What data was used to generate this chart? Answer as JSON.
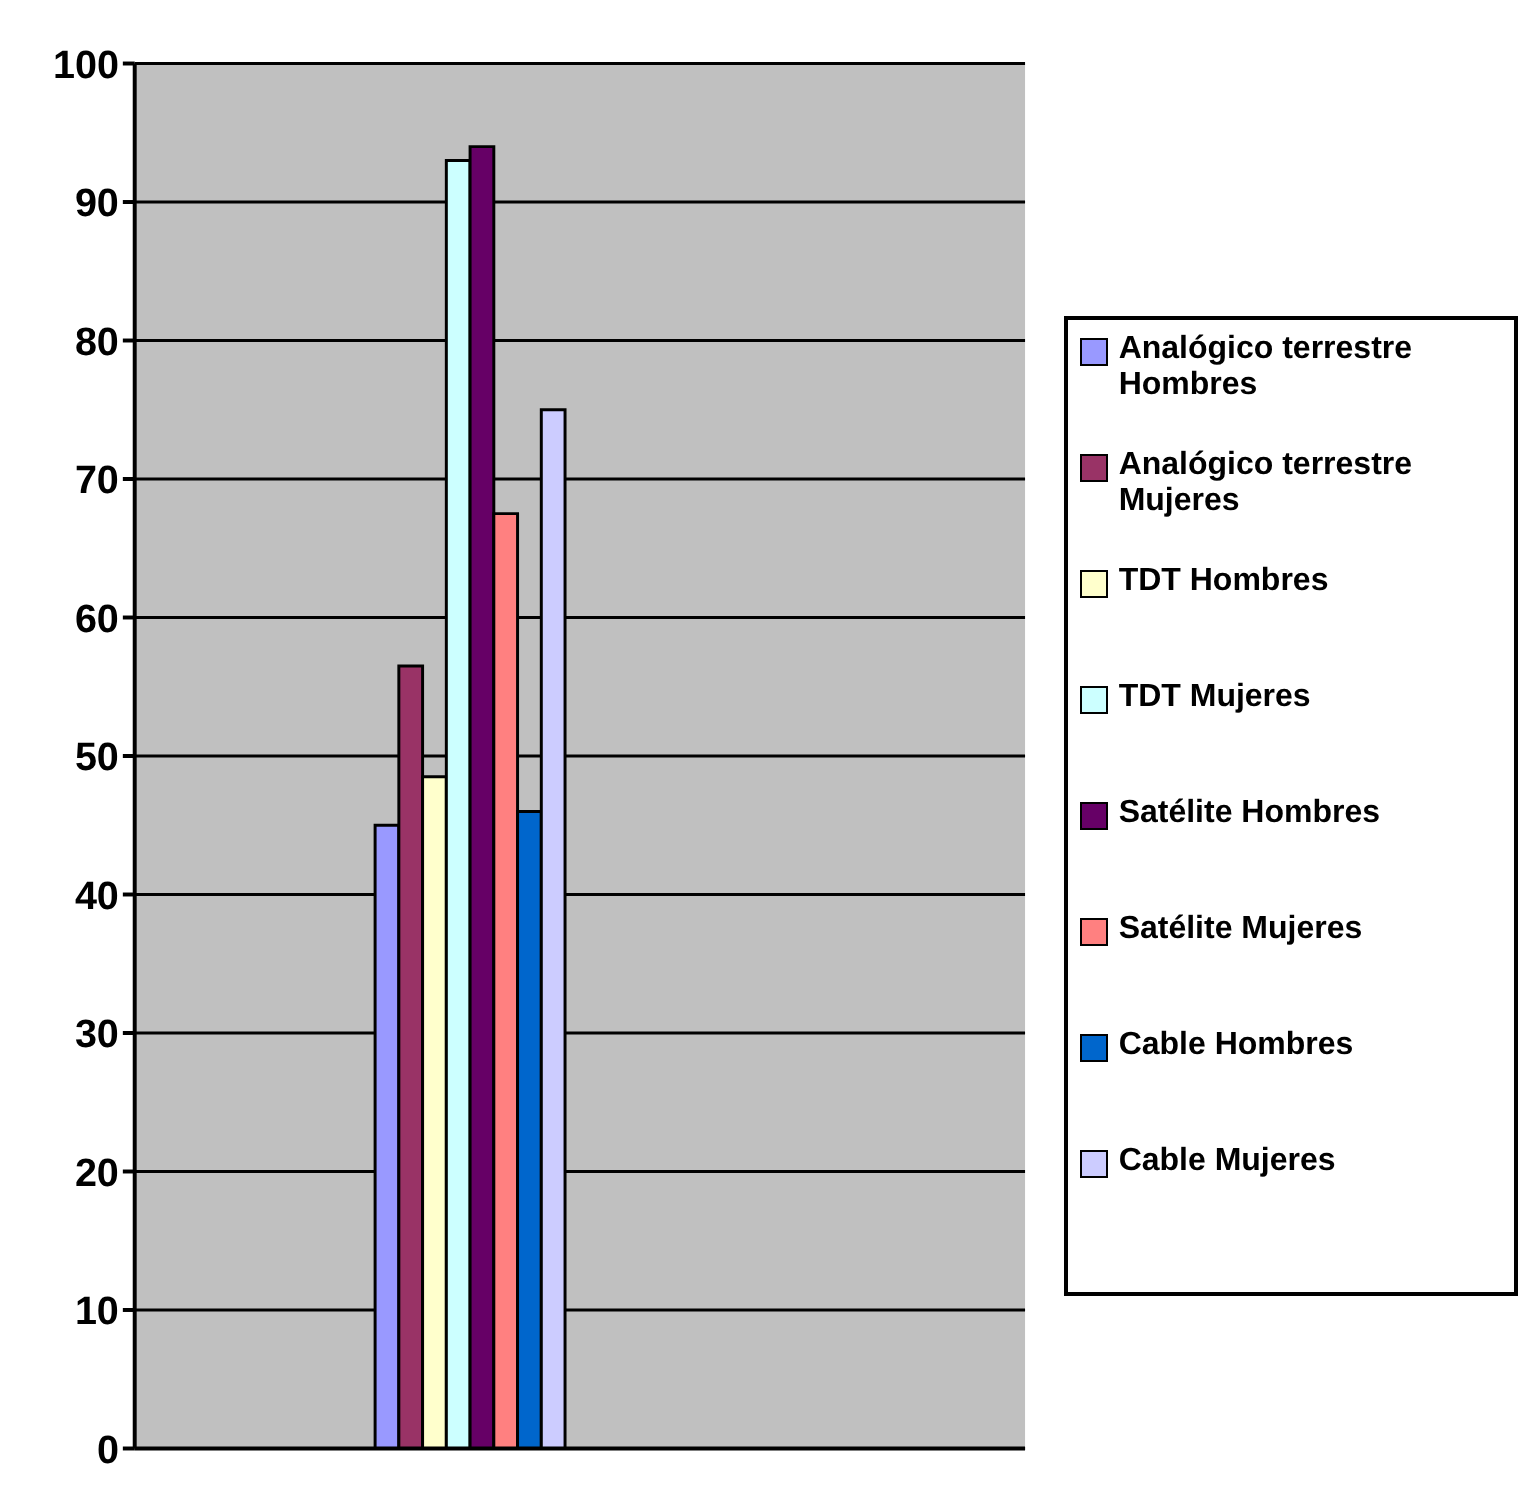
{
  "chart_data": {
    "type": "bar",
    "categories": [
      null,
      null,
      null,
      null
    ],
    "series": [
      {
        "name": "Analógico terrestre Hombres",
        "color": "#9999ff",
        "values": [
          null,
          45,
          null,
          null
        ]
      },
      {
        "name": "Analógico terrestre Mujeres",
        "color": "#993366",
        "values": [
          null,
          56.5,
          null,
          null
        ]
      },
      {
        "name": "TDT Hombres",
        "color": "#ffffcc",
        "values": [
          null,
          48.5,
          null,
          null
        ]
      },
      {
        "name": "TDT Mujeres",
        "color": "#ccffff",
        "values": [
          null,
          93,
          null,
          null
        ]
      },
      {
        "name": "Satélite Hombres",
        "color": "#660066",
        "values": [
          null,
          94,
          null,
          null
        ]
      },
      {
        "name": "Satélite Mujeres",
        "color": "#ff8080",
        "values": [
          null,
          67.5,
          null,
          null
        ]
      },
      {
        "name": "Cable Hombres",
        "color": "#0066cc",
        "values": [
          null,
          46,
          null,
          null
        ]
      },
      {
        "name": "Cable Mujeres",
        "color": "#ccccff",
        "values": [
          null,
          75,
          null,
          null
        ]
      }
    ],
    "ylim": [
      0,
      100
    ],
    "yticks": [
      0,
      10,
      20,
      30,
      40,
      50,
      60,
      70,
      80,
      90,
      100
    ],
    "grid": "y",
    "legend": "right",
    "tick_labels": "y"
  }
}
